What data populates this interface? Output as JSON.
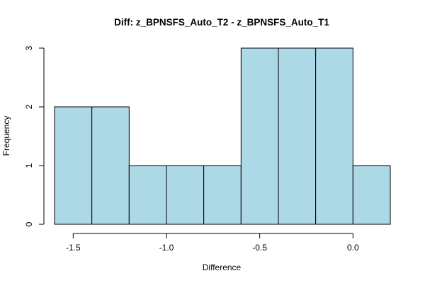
{
  "chart_data": {
    "type": "bar",
    "subtype": "histogram",
    "title": "Diff: z_BPNSFS_Auto_T2 - z_BPNSFS_Auto_T1",
    "xlabel": "Difference",
    "ylabel": "Frequency",
    "bin_edges": [
      -1.6,
      -1.4,
      -1.2,
      -1.0,
      -0.8,
      -0.6,
      -0.4,
      -0.2,
      0.0,
      0.2
    ],
    "values": [
      2,
      2,
      1,
      1,
      1,
      3,
      3,
      3,
      1
    ],
    "xlim": [
      -1.6,
      0.2
    ],
    "ylim": [
      0,
      3
    ],
    "x_ticks": [
      -1.5,
      -1.0,
      -0.5,
      0.0
    ],
    "x_tick_labels": [
      "-1.5",
      "-1.0",
      "-0.5",
      "0.0"
    ],
    "y_ticks": [
      0,
      1,
      2,
      3
    ],
    "y_tick_labels": [
      "0",
      "1",
      "2",
      "3"
    ],
    "bar_color": "#add8e6",
    "grid": false
  }
}
